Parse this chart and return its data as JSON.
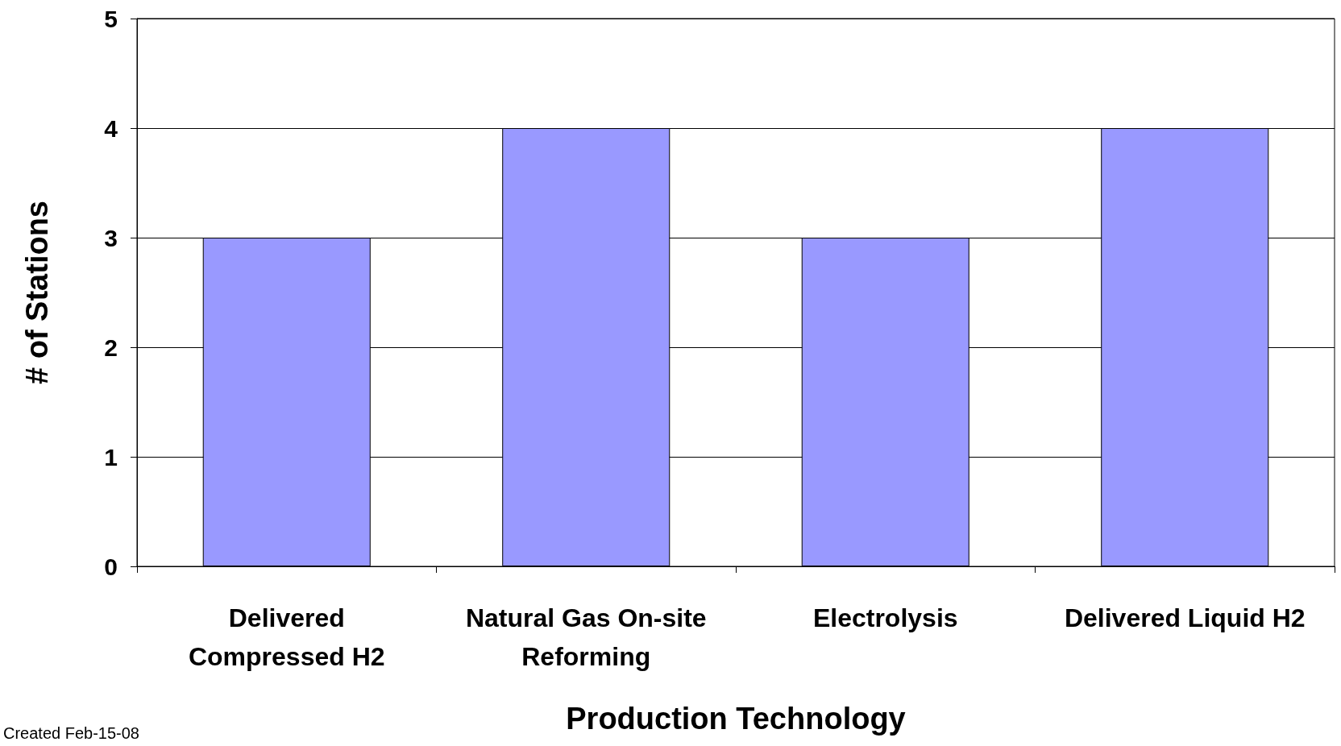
{
  "chart_data": {
    "type": "bar",
    "xlabel": "Production Technology",
    "ylabel": "# of Stations",
    "categories": [
      "Delivered\nCompressed H2",
      "Natural Gas On-site\nReforming",
      "Electrolysis",
      "Delivered Liquid H2"
    ],
    "values": [
      3,
      4,
      3,
      4
    ],
    "color": "#9999ff",
    "ylim": [
      0,
      5
    ],
    "yticks": [
      0,
      1,
      2,
      3,
      4,
      5
    ],
    "grid": "y",
    "annotations": [
      "Created Feb-15-08"
    ]
  }
}
